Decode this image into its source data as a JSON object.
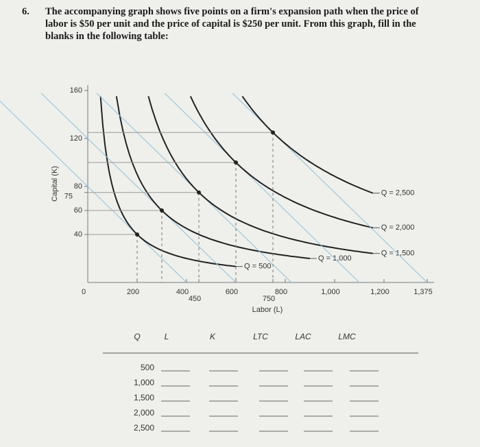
{
  "question": {
    "number": "6.",
    "text": "The accompanying graph shows five points on a firm's expansion path when the price of labor is $50 per unit and the price of capital is $250 per unit. From this graph, fill in the blanks in the following table:"
  },
  "graph": {
    "y_label": "Capital (K)",
    "x_label": "Labor (L)",
    "xlim": [
      0,
      1375
    ],
    "ylim": [
      0,
      160
    ],
    "xticks": [
      0,
      200,
      400,
      450,
      600,
      750,
      800,
      {
        "value": 1000,
        "label": "1,000"
      },
      {
        "value": 1200,
        "label": "1,200"
      },
      {
        "value": 1375,
        "label": "1,375"
      }
    ],
    "yticks": [
      40,
      60,
      75,
      80,
      120,
      160
    ],
    "isoquants": [
      {
        "label": "Q = 500",
        "L": 200,
        "K": 40
      },
      {
        "label": "Q = 1,000",
        "L": 300,
        "K": 60
      },
      {
        "label": "Q = 1,500",
        "L": 450,
        "K": 75
      },
      {
        "label": "Q = 2,000",
        "L": 600,
        "K": 100
      },
      {
        "label": "Q = 2,500",
        "L": 750,
        "K": 125
      }
    ]
  },
  "table": {
    "headers": [
      "Q",
      "L",
      "K",
      "LTC",
      "LAC",
      "LMC"
    ],
    "q_values": [
      "500",
      "1,000",
      "1,500",
      "2,000",
      "2,500"
    ]
  }
}
